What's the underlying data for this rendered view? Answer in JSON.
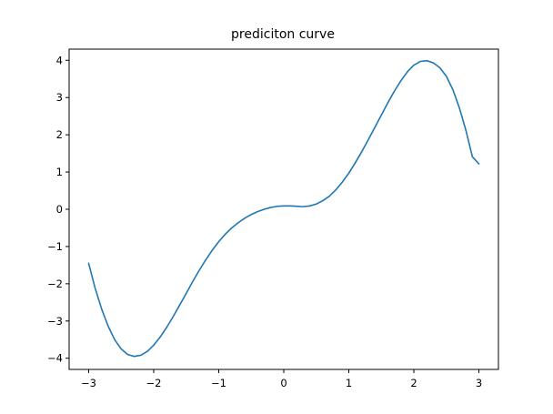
{
  "chart_data": {
    "type": "line",
    "title": "prediciton curve",
    "xlabel": "",
    "ylabel": "",
    "xlim": [
      -3.3,
      3.3
    ],
    "ylim": [
      -4.3,
      4.3
    ],
    "x_ticks": [
      -3,
      -2,
      -1,
      0,
      1,
      2,
      3
    ],
    "x_tick_labels": [
      "−3",
      "−2",
      "−1",
      "0",
      "1",
      "2",
      "3"
    ],
    "y_ticks": [
      -4,
      -3,
      -2,
      -1,
      0,
      1,
      2,
      3,
      4
    ],
    "y_tick_labels": [
      "−4",
      "−3",
      "−2",
      "−1",
      "0",
      "1",
      "2",
      "3",
      "4"
    ],
    "grid": false,
    "series": [
      {
        "color": "#1f77b4",
        "x": [
          -3.0,
          -2.9,
          -2.8,
          -2.7,
          -2.6,
          -2.5,
          -2.4,
          -2.3,
          -2.2,
          -2.1,
          -2.0,
          -1.9,
          -1.8,
          -1.7,
          -1.6,
          -1.5,
          -1.4,
          -1.3,
          -1.2,
          -1.1,
          -1.0,
          -0.9,
          -0.8,
          -0.7,
          -0.6,
          -0.5,
          -0.4,
          -0.3,
          -0.2,
          -0.1,
          0.0,
          0.1,
          0.2,
          0.3,
          0.4,
          0.5,
          0.6,
          0.7,
          0.8,
          0.9,
          1.0,
          1.1,
          1.2,
          1.3,
          1.4,
          1.5,
          1.6,
          1.7,
          1.8,
          1.9,
          2.0,
          2.1,
          2.2,
          2.3,
          2.4,
          2.5,
          2.6,
          2.7,
          2.8,
          2.9,
          3.0
        ],
        "y": [
          -1.45,
          -2.12,
          -2.68,
          -3.14,
          -3.5,
          -3.75,
          -3.9,
          -3.95,
          -3.92,
          -3.82,
          -3.65,
          -3.43,
          -3.17,
          -2.88,
          -2.57,
          -2.26,
          -1.94,
          -1.64,
          -1.36,
          -1.1,
          -0.87,
          -0.67,
          -0.5,
          -0.36,
          -0.24,
          -0.14,
          -0.06,
          0.0,
          0.05,
          0.08,
          0.09,
          0.09,
          0.08,
          0.07,
          0.09,
          0.14,
          0.23,
          0.35,
          0.52,
          0.73,
          0.97,
          1.25,
          1.55,
          1.87,
          2.2,
          2.53,
          2.86,
          3.17,
          3.45,
          3.69,
          3.87,
          3.97,
          3.99,
          3.93,
          3.8,
          3.57,
          3.21,
          2.72,
          2.12,
          1.41,
          1.22
        ]
      }
    ]
  }
}
